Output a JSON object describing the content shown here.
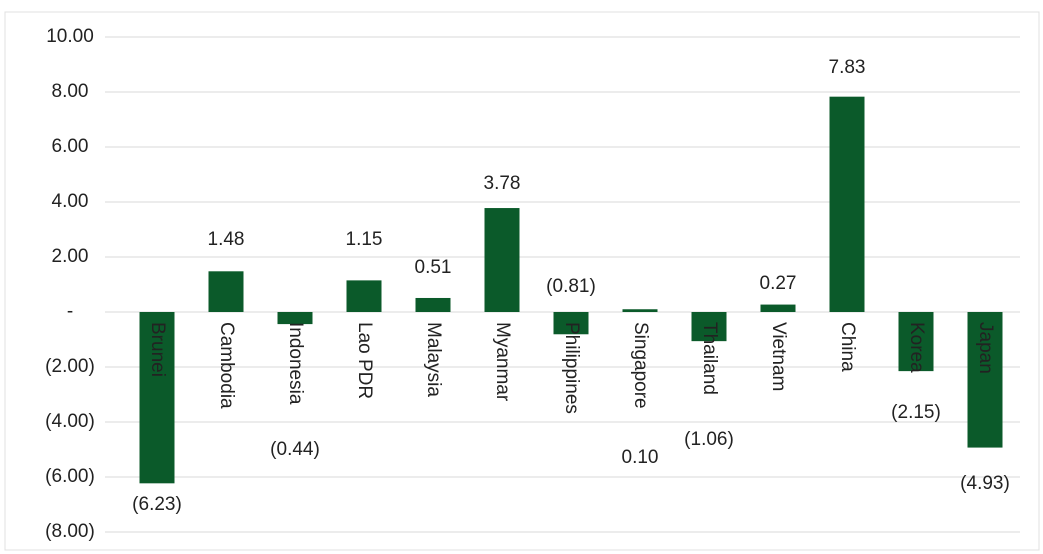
{
  "chart_data": {
    "type": "bar",
    "categories": [
      "Brunei",
      "Cambodia",
      "Indonesia",
      "Lao PDR",
      "Malaysia",
      "Myanmar",
      "Philippines",
      "Singapore",
      "Thailand",
      "Vietnam",
      "China",
      "Korea",
      "Japan"
    ],
    "values": [
      -6.23,
      1.48,
      -0.44,
      1.15,
      0.51,
      3.78,
      -0.81,
      0.1,
      -1.06,
      0.27,
      7.83,
      -2.15,
      -4.93
    ],
    "value_labels": [
      "(6.23)",
      "1.48",
      "(0.44)",
      "1.15",
      "0.51",
      "3.78",
      "(0.81)",
      "0.10",
      "(1.06)",
      "0.27",
      "7.83",
      "(2.15)",
      "(4.93)"
    ],
    "color": "#0b5a2a",
    "ylim": [
      -8,
      10
    ],
    "yticks": [
      {
        "value": -8,
        "label": "(8.00)"
      },
      {
        "value": -6,
        "label": "(6.00)"
      },
      {
        "value": -4,
        "label": "(4.00)"
      },
      {
        "value": -2,
        "label": "(2.00)"
      },
      {
        "value": 0,
        "label": "-"
      },
      {
        "value": 2,
        "label": "2.00"
      },
      {
        "value": 4,
        "label": "4.00"
      },
      {
        "value": 6,
        "label": "6.00"
      },
      {
        "value": 8,
        "label": "8.00"
      },
      {
        "value": 10,
        "label": "10.00"
      }
    ],
    "grid": true
  }
}
